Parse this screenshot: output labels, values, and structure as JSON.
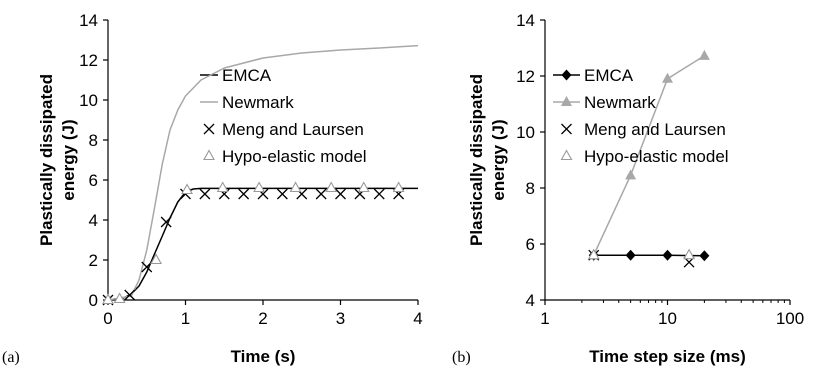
{
  "panel_labels": [
    "(a)",
    "(b)"
  ],
  "colors": {
    "emca": "#000000",
    "newmark": "#a8a8a8",
    "meng": "#000000",
    "hypo": "#9a9a9a"
  },
  "chart_data": [
    {
      "type": "line",
      "panel": "(a)",
      "xlabel": "Time (s)",
      "ylabel": "Plastically dissipated energy (J)",
      "xlim": [
        0,
        4
      ],
      "ylim": [
        0,
        14
      ],
      "xticks": [
        0,
        1,
        2,
        3,
        4
      ],
      "yticks": [
        0,
        2,
        4,
        6,
        8,
        10,
        12,
        14
      ],
      "x_tick_labels": [
        "0",
        "1",
        "2",
        "3",
        "4"
      ],
      "y_tick_labels": [
        "0",
        "2",
        "4",
        "6",
        "8",
        "10",
        "12",
        "14"
      ],
      "grid": false,
      "legend_position": "inside-upper-middle",
      "series": [
        {
          "name": "EMCA",
          "style": "line",
          "x": [
            0,
            0.2,
            0.3,
            0.4,
            0.5,
            0.6,
            0.7,
            0.8,
            0.9,
            1.0,
            1.1,
            1.2,
            1.5,
            2.0,
            3.0,
            4.0
          ],
          "y": [
            0,
            0.1,
            0.3,
            0.7,
            1.4,
            2.3,
            3.2,
            4.1,
            4.9,
            5.4,
            5.55,
            5.58,
            5.58,
            5.58,
            5.58,
            5.58
          ]
        },
        {
          "name": "Newmark",
          "style": "line",
          "x": [
            0,
            0.3,
            0.4,
            0.5,
            0.6,
            0.7,
            0.8,
            0.9,
            1.0,
            1.2,
            1.5,
            2.0,
            2.5,
            3.0,
            3.5,
            4.0
          ],
          "y": [
            0,
            0.2,
            1.0,
            2.5,
            4.6,
            6.8,
            8.5,
            9.5,
            10.2,
            11.0,
            11.6,
            12.1,
            12.35,
            12.5,
            12.6,
            12.72
          ]
        },
        {
          "name": "Meng and Laursen",
          "style": "x-marker",
          "x": [
            0,
            0.28,
            0.5,
            0.75,
            1.0,
            1.25,
            1.5,
            1.75,
            2.0,
            2.25,
            2.5,
            2.75,
            3.0,
            3.25,
            3.5,
            3.75
          ],
          "y": [
            0,
            0.25,
            1.65,
            3.9,
            5.3,
            5.3,
            5.3,
            5.3,
            5.3,
            5.3,
            5.3,
            5.3,
            5.3,
            5.3,
            5.3,
            5.3
          ]
        },
        {
          "name": "Hypo-elastic model",
          "style": "triangle-marker",
          "x": [
            0,
            0.15,
            0.62,
            1.02,
            1.48,
            1.95,
            2.42,
            2.88,
            3.3,
            3.75
          ],
          "y": [
            0,
            0.05,
            2.0,
            5.5,
            5.6,
            5.6,
            5.6,
            5.6,
            5.6,
            5.6
          ]
        }
      ]
    },
    {
      "type": "line",
      "panel": "(b)",
      "xlabel": "Time step size (ms)",
      "ylabel": "Plastically dissipated energy (J)",
      "xscale": "log",
      "xlim": [
        1,
        100
      ],
      "ylim": [
        4,
        14
      ],
      "xticks": [
        1,
        10,
        100
      ],
      "yticks": [
        4,
        6,
        8,
        10,
        12,
        14
      ],
      "x_tick_labels": [
        "1",
        "10",
        "100"
      ],
      "y_tick_labels": [
        "4",
        "6",
        "8",
        "10",
        "12",
        "14"
      ],
      "grid": false,
      "legend_position": "inside-upper-left",
      "series": [
        {
          "name": "EMCA",
          "style": "line-diamond",
          "x": [
            2.5,
            5,
            10,
            20
          ],
          "y": [
            5.6,
            5.6,
            5.6,
            5.58
          ]
        },
        {
          "name": "Newmark",
          "style": "line-filled-triangle",
          "x": [
            2.5,
            5,
            10,
            20
          ],
          "y": [
            5.6,
            8.45,
            11.9,
            12.72
          ]
        },
        {
          "name": "Meng and Laursen",
          "style": "x-marker",
          "x": [
            2.5,
            15
          ],
          "y": [
            5.6,
            5.35
          ]
        },
        {
          "name": "Hypo-elastic model",
          "style": "triangle-marker",
          "x": [
            2.5,
            15
          ],
          "y": [
            5.6,
            5.6
          ]
        }
      ]
    }
  ]
}
